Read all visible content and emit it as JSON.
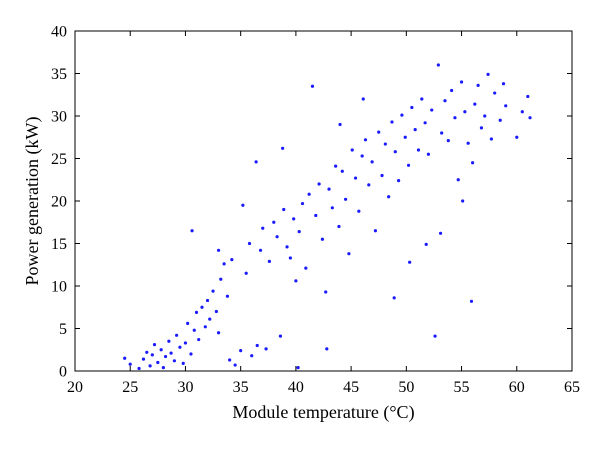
{
  "chart_data": {
    "type": "scatter",
    "xlabel": "Module temperature (°C)",
    "ylabel": "Power generation (kW)",
    "xlim": [
      20,
      65
    ],
    "ylim": [
      0,
      40
    ],
    "xticks": [
      "20",
      "25",
      "30",
      "35",
      "40",
      "45",
      "50",
      "55",
      "60",
      "65"
    ],
    "yticks": [
      "0",
      "5",
      "10",
      "15",
      "20",
      "25",
      "30",
      "35",
      "40"
    ],
    "grid": false,
    "marker_color": "#1a1aff",
    "series": [
      {
        "points": [
          [
            24.5,
            1.5
          ],
          [
            25.0,
            0.8
          ],
          [
            25.8,
            0.3
          ],
          [
            26.2,
            1.4
          ],
          [
            26.5,
            2.2
          ],
          [
            26.8,
            0.6
          ],
          [
            27.0,
            1.9
          ],
          [
            27.2,
            3.1
          ],
          [
            27.5,
            1.0
          ],
          [
            27.8,
            2.5
          ],
          [
            28.0,
            0.4
          ],
          [
            28.2,
            1.7
          ],
          [
            28.5,
            3.5
          ],
          [
            28.7,
            2.1
          ],
          [
            29.0,
            1.2
          ],
          [
            29.2,
            4.2
          ],
          [
            29.5,
            2.8
          ],
          [
            29.8,
            0.9
          ],
          [
            30.0,
            3.3
          ],
          [
            30.2,
            5.6
          ],
          [
            30.5,
            2.0
          ],
          [
            30.8,
            4.8
          ],
          [
            31.0,
            6.9
          ],
          [
            31.2,
            3.7
          ],
          [
            31.5,
            7.5
          ],
          [
            31.8,
            5.2
          ],
          [
            32.0,
            8.3
          ],
          [
            32.2,
            6.1
          ],
          [
            32.5,
            9.4
          ],
          [
            32.8,
            7.0
          ],
          [
            33.0,
            4.5
          ],
          [
            33.2,
            10.8
          ],
          [
            33.5,
            12.6
          ],
          [
            33.8,
            8.8
          ],
          [
            34.0,
            1.3
          ],
          [
            34.2,
            13.1
          ],
          [
            34.5,
            0.7
          ],
          [
            35.0,
            2.4
          ],
          [
            35.5,
            11.5
          ],
          [
            35.8,
            15.0
          ],
          [
            36.0,
            1.8
          ],
          [
            36.5,
            3.0
          ],
          [
            36.8,
            14.2
          ],
          [
            37.0,
            16.8
          ],
          [
            37.3,
            2.6
          ],
          [
            37.6,
            12.9
          ],
          [
            38.0,
            17.5
          ],
          [
            38.3,
            15.8
          ],
          [
            38.6,
            4.1
          ],
          [
            38.9,
            19.0
          ],
          [
            39.2,
            14.6
          ],
          [
            39.5,
            13.3
          ],
          [
            39.8,
            17.9
          ],
          [
            40.0,
            10.6
          ],
          [
            40.3,
            16.4
          ],
          [
            40.6,
            19.7
          ],
          [
            40.9,
            12.1
          ],
          [
            41.2,
            20.8
          ],
          [
            41.5,
            33.5
          ],
          [
            41.8,
            18.3
          ],
          [
            42.1,
            22.0
          ],
          [
            42.4,
            15.5
          ],
          [
            42.7,
            9.3
          ],
          [
            43.0,
            21.4
          ],
          [
            43.3,
            19.2
          ],
          [
            43.6,
            24.1
          ],
          [
            43.9,
            17.0
          ],
          [
            44.2,
            23.5
          ],
          [
            44.5,
            20.2
          ],
          [
            44.8,
            13.8
          ],
          [
            45.1,
            26.0
          ],
          [
            45.4,
            22.7
          ],
          [
            45.7,
            18.8
          ],
          [
            46.0,
            25.3
          ],
          [
            46.3,
            27.2
          ],
          [
            46.6,
            21.9
          ],
          [
            46.9,
            24.6
          ],
          [
            47.2,
            16.5
          ],
          [
            47.5,
            28.1
          ],
          [
            47.8,
            23.0
          ],
          [
            48.1,
            26.7
          ],
          [
            48.4,
            20.5
          ],
          [
            48.7,
            29.3
          ],
          [
            49.0,
            25.8
          ],
          [
            49.3,
            22.4
          ],
          [
            49.6,
            30.1
          ],
          [
            49.9,
            27.5
          ],
          [
            50.2,
            24.2
          ],
          [
            50.5,
            31.0
          ],
          [
            50.8,
            28.4
          ],
          [
            51.1,
            26.0
          ],
          [
            51.4,
            32.0
          ],
          [
            51.7,
            29.2
          ],
          [
            52.0,
            25.5
          ],
          [
            52.3,
            30.7
          ],
          [
            52.6,
            4.1
          ],
          [
            52.9,
            36.0
          ],
          [
            53.2,
            28.0
          ],
          [
            53.5,
            31.8
          ],
          [
            53.8,
            27.1
          ],
          [
            54.1,
            33.0
          ],
          [
            54.4,
            29.8
          ],
          [
            54.7,
            22.5
          ],
          [
            55.0,
            34.0
          ],
          [
            55.3,
            30.5
          ],
          [
            55.6,
            26.8
          ],
          [
            55.9,
            8.2
          ],
          [
            56.2,
            31.4
          ],
          [
            56.5,
            33.6
          ],
          [
            56.8,
            28.6
          ],
          [
            57.1,
            30.0
          ],
          [
            57.4,
            34.9
          ],
          [
            57.7,
            27.3
          ],
          [
            58.0,
            32.7
          ],
          [
            58.5,
            29.5
          ],
          [
            59.0,
            31.2
          ],
          [
            60.5,
            30.5
          ],
          [
            61.0,
            32.3
          ],
          [
            61.2,
            29.8
          ],
          [
            48.9,
            8.6
          ],
          [
            40.2,
            0.4
          ],
          [
            42.8,
            2.6
          ],
          [
            30.6,
            16.5
          ],
          [
            33.0,
            14.2
          ],
          [
            35.2,
            19.5
          ],
          [
            36.4,
            24.6
          ],
          [
            38.8,
            26.2
          ],
          [
            50.3,
            12.8
          ],
          [
            51.8,
            14.9
          ],
          [
            53.1,
            16.2
          ],
          [
            55.1,
            20.0
          ],
          [
            56.0,
            24.5
          ],
          [
            46.1,
            32.0
          ],
          [
            44.0,
            29.0
          ],
          [
            58.8,
            33.8
          ],
          [
            60.0,
            27.5
          ]
        ]
      }
    ]
  }
}
